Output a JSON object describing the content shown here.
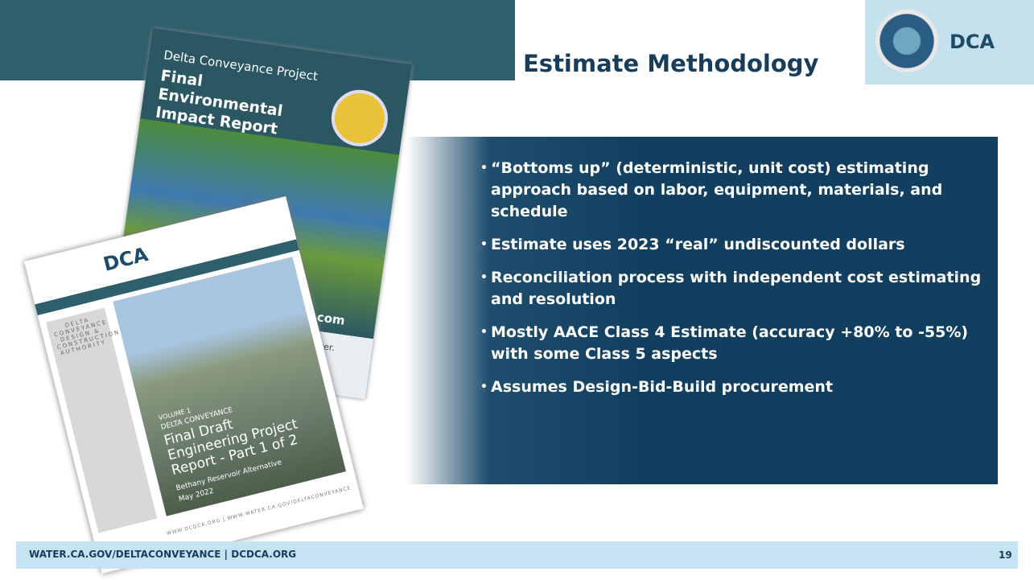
{
  "header": {
    "title": "Estimate Methodology",
    "logo": "DCA"
  },
  "cover_eir": {
    "project": "Delta Conveyance Project",
    "title": "Final Environmental Impact Report",
    "url": "ject.com",
    "caption": "port cover."
  },
  "cover_engineering": {
    "logo": "DCA",
    "authority": "DELTA CONVEYANCE DESIGN & CONSTRUCTION AUTHORITY",
    "volume": "VOLUME 1",
    "project": "DELTA CONVEYANCE",
    "title": "Final Draft Engineering Project Report - Part 1 of 2",
    "alternative": "Bethany Reservoir Alternative",
    "date": "May 2022",
    "footer": "WWW.DCDCA.ORG | WWW.WATER.CA.GOV/DELTACONVEYANCE"
  },
  "bullets": [
    "“Bottoms up” (deterministic, unit cost) estimating approach based on labor, equipment, materials, and schedule",
    "Estimate uses 2023 “real” undiscounted dollars",
    "Reconciliation process with independent cost estimating and resolution",
    "Mostly AACE Class 4 Estimate (accuracy +80% to -55%) with some Class 5 aspects",
    "Assumes Design-Bid-Build procurement"
  ],
  "footer": {
    "links": "WATER.CA.GOV/DELTACONVEYANCE | DCDCA.ORG",
    "page": 19
  }
}
